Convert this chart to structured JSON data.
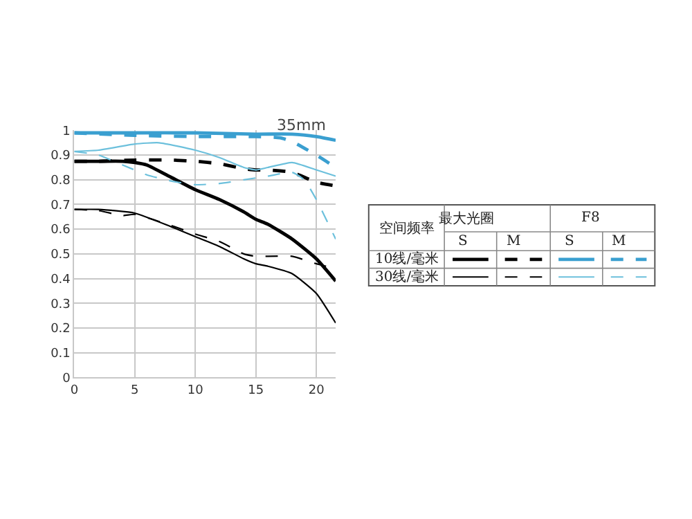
{
  "chart_data": {
    "type": "line",
    "xlim": [
      0,
      21.6
    ],
    "ylim": [
      0,
      1
    ],
    "xticks": [
      0,
      5,
      10,
      15,
      20
    ],
    "yticks": [
      0,
      0.1,
      0.2,
      0.3,
      0.4,
      0.5,
      0.6,
      0.7,
      0.8,
      0.9,
      1
    ],
    "grid": true,
    "marker": "none",
    "annotations": [
      "35mm",
      "空间频率",
      "最大光圈",
      "F8",
      "S",
      "M",
      "S",
      "M",
      "10线/毫米",
      "30线/毫米"
    ],
    "series": [
      {
        "color": "#000000",
        "line_style": "solid",
        "x": [
          0,
          2,
          4,
          5,
          6,
          8,
          10,
          12,
          14,
          15,
          16,
          18,
          20,
          21.6
        ],
        "values": [
          0.875,
          0.875,
          0.875,
          0.87,
          0.86,
          0.81,
          0.76,
          0.72,
          0.67,
          0.64,
          0.62,
          0.56,
          0.48,
          0.39
        ]
      },
      {
        "color": "#000000",
        "line_style": "dashed",
        "x": [
          0,
          2,
          5,
          8,
          10,
          12,
          14,
          15,
          16,
          18,
          20,
          21.6
        ],
        "values": [
          0.875,
          0.875,
          0.88,
          0.88,
          0.875,
          0.865,
          0.845,
          0.84,
          0.84,
          0.83,
          0.79,
          0.775
        ]
      },
      {
        "color": "#3a9fd0",
        "line_style": "solid",
        "x": [
          0,
          5,
          10,
          15,
          18,
          20,
          21.6
        ],
        "values": [
          0.99,
          0.99,
          0.99,
          0.985,
          0.985,
          0.975,
          0.96
        ]
      },
      {
        "color": "#3a9fd0",
        "line_style": "dashed",
        "x": [
          0,
          5,
          10,
          15,
          17,
          18,
          20,
          21.6
        ],
        "values": [
          0.99,
          0.98,
          0.975,
          0.975,
          0.97,
          0.955,
          0.9,
          0.85
        ]
      },
      {
        "color": "#000000",
        "line_style": "solid",
        "x": [
          0,
          2,
          5,
          8,
          10,
          12,
          14,
          15,
          16,
          18,
          20,
          21.6
        ],
        "values": [
          0.68,
          0.68,
          0.665,
          0.61,
          0.57,
          0.53,
          0.48,
          0.46,
          0.45,
          0.42,
          0.34,
          0.22
        ]
      },
      {
        "color": "#000000",
        "line_style": "dashed",
        "x": [
          0,
          2,
          4,
          5,
          8,
          10,
          12,
          14,
          15,
          16,
          18,
          20,
          21.6
        ],
        "values": [
          0.68,
          0.675,
          0.655,
          0.66,
          0.615,
          0.58,
          0.55,
          0.5,
          0.49,
          0.49,
          0.49,
          0.46,
          0.44
        ]
      },
      {
        "color": "#6cc0dc",
        "line_style": "solid",
        "x": [
          0,
          2,
          5,
          7,
          10,
          12,
          14,
          15,
          16,
          18,
          20,
          21.6
        ],
        "values": [
          0.915,
          0.92,
          0.945,
          0.95,
          0.92,
          0.89,
          0.85,
          0.84,
          0.85,
          0.87,
          0.84,
          0.815
        ]
      },
      {
        "color": "#6cc0dc",
        "line_style": "dashed",
        "x": [
          0,
          2,
          4,
          6,
          8,
          10,
          12,
          14,
          16,
          18,
          19,
          20,
          21.6
        ],
        "values": [
          0.915,
          0.9,
          0.86,
          0.82,
          0.795,
          0.78,
          0.785,
          0.8,
          0.815,
          0.83,
          0.8,
          0.72,
          0.56
        ]
      }
    ]
  }
}
